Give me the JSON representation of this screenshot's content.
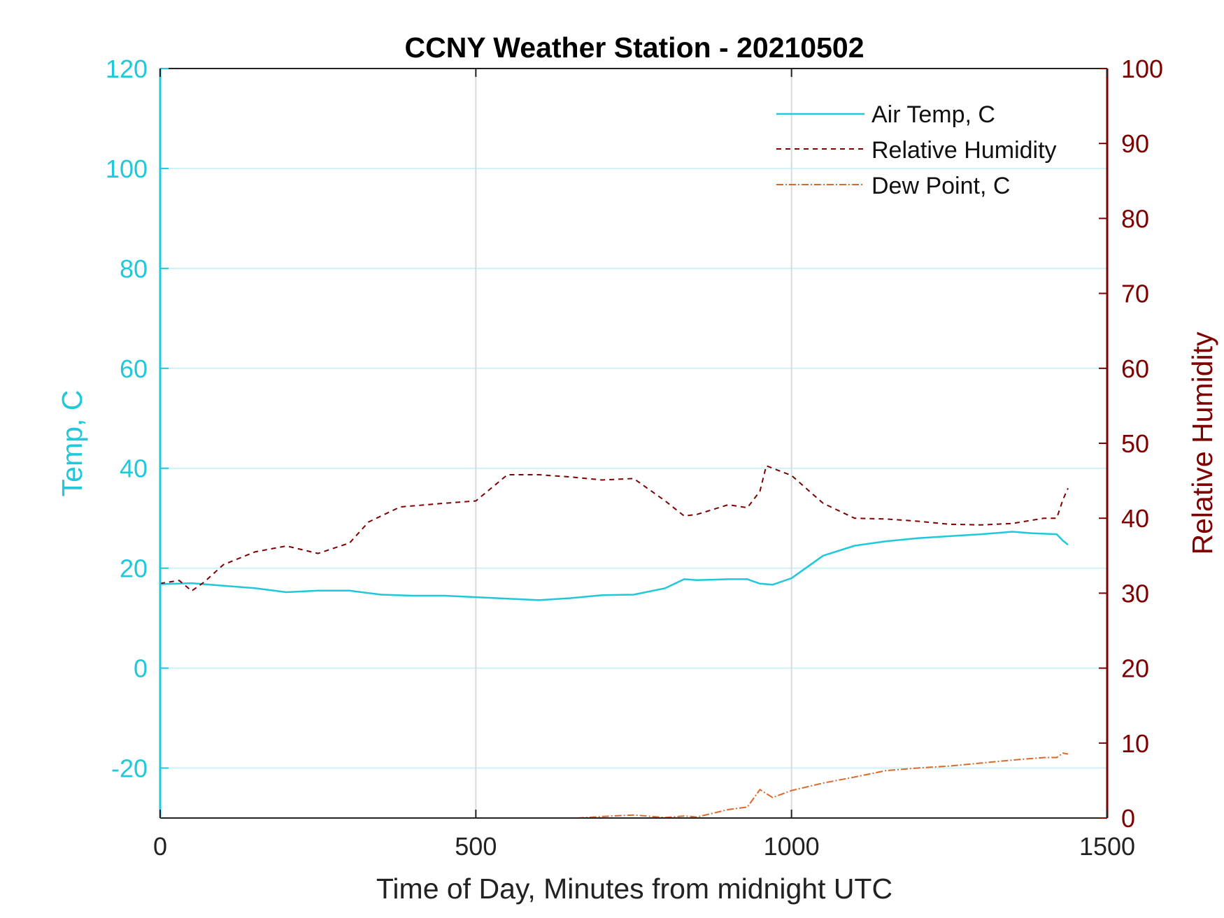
{
  "chart_data": {
    "type": "line",
    "title": "CCNY Weather Station - 20210502",
    "xlabel": "Time of Day, Minutes from midnight UTC",
    "ylabel_left": "Temp, C",
    "ylabel_right": "Relative Humidity",
    "xlim": [
      0,
      1500
    ],
    "ylim_left": [
      -30,
      120
    ],
    "ylim_right": [
      0,
      100
    ],
    "x_ticks": [
      "0",
      "500",
      "1000",
      "1500"
    ],
    "y_ticks_left": [
      "120",
      "100",
      "80",
      "60",
      "40",
      "20",
      "0",
      "-20"
    ],
    "y_ticks_right": [
      "100",
      "90",
      "80",
      "70",
      "60",
      "50",
      "40",
      "30",
      "20",
      "10",
      "0"
    ],
    "grid": "on",
    "legend_position": "top-right",
    "colors": {
      "air_temp": "#1fc8da",
      "humidity": "#7e0000",
      "dew_point": "#d9692a",
      "left_axis": "#1fc8da",
      "right_axis": "#7e0000"
    },
    "series": [
      {
        "name": "Air Temp, C",
        "axis": "left",
        "style": "solid",
        "x": [
          0,
          50,
          100,
          150,
          200,
          250,
          300,
          350,
          400,
          450,
          500,
          550,
          600,
          650,
          700,
          750,
          800,
          830,
          850,
          900,
          930,
          950,
          970,
          1000,
          1050,
          1100,
          1150,
          1200,
          1250,
          1300,
          1350,
          1380,
          1420,
          1430,
          1438
        ],
        "y": [
          16.8,
          17.0,
          16.5,
          16.0,
          15.2,
          15.5,
          15.5,
          14.7,
          14.5,
          14.5,
          14.2,
          13.9,
          13.6,
          14.0,
          14.6,
          14.7,
          16.0,
          17.8,
          17.6,
          17.8,
          17.8,
          16.9,
          16.7,
          18.0,
          22.5,
          24.5,
          25.4,
          26.0,
          26.4,
          26.8,
          27.3,
          27.0,
          26.8,
          25.5,
          24.7
        ]
      },
      {
        "name": "Relative Humidity",
        "axis": "right",
        "style": "dashed",
        "x": [
          0,
          30,
          50,
          70,
          100,
          150,
          200,
          250,
          300,
          330,
          380,
          450,
          500,
          550,
          600,
          650,
          700,
          750,
          800,
          830,
          850,
          900,
          930,
          950,
          960,
          1000,
          1050,
          1100,
          1150,
          1200,
          1250,
          1300,
          1350,
          1400,
          1420,
          1430,
          1438
        ],
        "y": [
          31.3,
          31.7,
          30.3,
          31.5,
          33.8,
          35.5,
          36.3,
          35.3,
          36.7,
          39.5,
          41.5,
          42.0,
          42.3,
          45.8,
          45.8,
          45.5,
          45.1,
          45.3,
          42.3,
          40.3,
          40.5,
          41.8,
          41.4,
          43.6,
          47.0,
          45.7,
          42.0,
          40.0,
          39.9,
          39.6,
          39.2,
          39.1,
          39.3,
          40.0,
          40.0,
          42.5,
          44.0
        ]
      },
      {
        "name": "Dew Point, C",
        "axis": "left",
        "style": "dash-dot",
        "x": [
          660,
          700,
          750,
          800,
          830,
          850,
          900,
          930,
          950,
          970,
          1000,
          1050,
          1100,
          1150,
          1200,
          1250,
          1300,
          1350,
          1400,
          1420,
          1430,
          1438
        ],
        "y": [
          -30.0,
          -29.7,
          -29.4,
          -29.9,
          -29.6,
          -29.8,
          -28.3,
          -27.8,
          -24.3,
          -25.9,
          -24.5,
          -23.0,
          -21.8,
          -20.5,
          -20.0,
          -19.6,
          -19.0,
          -18.4,
          -17.9,
          -17.9,
          -17.0,
          -17.2
        ]
      }
    ]
  }
}
